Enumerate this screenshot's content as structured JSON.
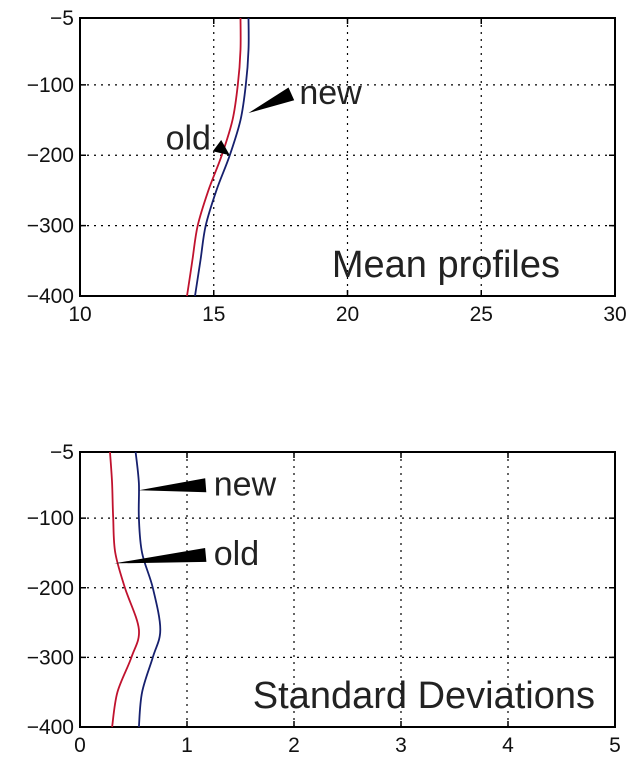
{
  "chart_data": [
    {
      "type": "line",
      "title": "Mean profiles",
      "xlabel": "",
      "ylabel": "",
      "xlim": [
        10,
        30
      ],
      "ylim": [
        -400,
        -5
      ],
      "xticks": [
        "10",
        "15",
        "20",
        "25",
        "30"
      ],
      "yticks": [
        "-5",
        "-100",
        "-200",
        "-300",
        "-400"
      ],
      "grid": true,
      "series": [
        {
          "name": "old",
          "color": "#c0122e",
          "points": [
            [
              16.0,
              -5
            ],
            [
              16.0,
              -50
            ],
            [
              15.9,
              -100
            ],
            [
              15.7,
              -150
            ],
            [
              15.3,
              -200
            ],
            [
              14.8,
              -250
            ],
            [
              14.4,
              -300
            ],
            [
              14.2,
              -350
            ],
            [
              14.0,
              -400
            ]
          ]
        },
        {
          "name": "new",
          "color": "#16206e",
          "points": [
            [
              16.3,
              -5
            ],
            [
              16.3,
              -50
            ],
            [
              16.2,
              -100
            ],
            [
              16.0,
              -150
            ],
            [
              15.6,
              -200
            ],
            [
              15.1,
              -250
            ],
            [
              14.7,
              -300
            ],
            [
              14.5,
              -350
            ],
            [
              14.3,
              -400
            ]
          ]
        }
      ],
      "annotations": [
        {
          "text": "new",
          "x": 18.2,
          "y": -110,
          "arrow_to": [
            16.3,
            -140
          ]
        },
        {
          "text": "old",
          "x": 13.2,
          "y": -175,
          "arrow_to": [
            15.6,
            -200
          ]
        }
      ]
    },
    {
      "type": "line",
      "title": "Standard Deviations",
      "xlabel": "",
      "ylabel": "",
      "xlim": [
        0,
        5
      ],
      "ylim": [
        -400,
        -5
      ],
      "xticks": [
        "0",
        "1",
        "2",
        "3",
        "4",
        "5"
      ],
      "yticks": [
        "-5",
        "-100",
        "-200",
        "-300",
        "-400"
      ],
      "grid": true,
      "series": [
        {
          "name": "old",
          "color": "#c0122e",
          "points": [
            [
              0.28,
              -5
            ],
            [
              0.3,
              -50
            ],
            [
              0.31,
              -100
            ],
            [
              0.33,
              -150
            ],
            [
              0.42,
              -200
            ],
            [
              0.55,
              -260
            ],
            [
              0.48,
              -300
            ],
            [
              0.35,
              -350
            ],
            [
              0.3,
              -400
            ]
          ]
        },
        {
          "name": "new",
          "color": "#16206e",
          "points": [
            [
              0.52,
              -5
            ],
            [
              0.55,
              -50
            ],
            [
              0.55,
              -100
            ],
            [
              0.58,
              -150
            ],
            [
              0.68,
              -200
            ],
            [
              0.75,
              -260
            ],
            [
              0.68,
              -300
            ],
            [
              0.58,
              -350
            ],
            [
              0.55,
              -400
            ]
          ]
        }
      ],
      "annotations": [
        {
          "text": "new",
          "x": 1.25,
          "y": -50,
          "arrow_to": [
            0.55,
            -60
          ]
        },
        {
          "text": "old",
          "x": 1.25,
          "y": -150,
          "arrow_to": [
            0.32,
            -165
          ]
        }
      ]
    }
  ]
}
